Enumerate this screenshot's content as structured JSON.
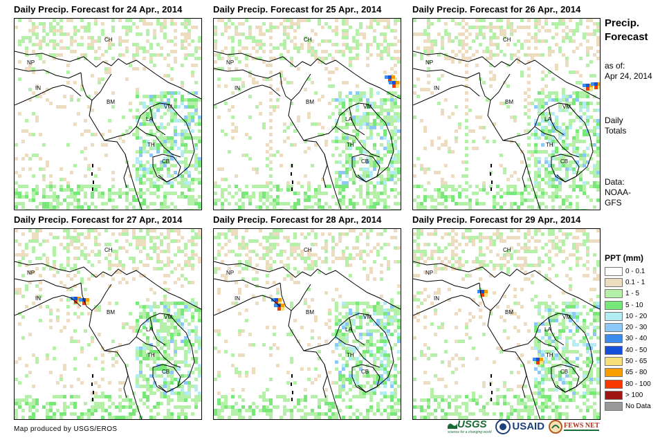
{
  "panels": [
    {
      "title": "Daily Precip. Forecast for 24 Apr., 2014"
    },
    {
      "title": "Daily Precip. Forecast for 25 Apr., 2014"
    },
    {
      "title": "Daily Precip. Forecast for 26 Apr., 2014"
    },
    {
      "title": "Daily Precip. Forecast for 27 Apr., 2014"
    },
    {
      "title": "Daily Precip. Forecast for 28 Apr., 2014"
    },
    {
      "title": "Daily Precip. Forecast for 29 Apr., 2014"
    }
  ],
  "country_labels": [
    "CH",
    "NP",
    "IN",
    "BM",
    "LA",
    "VM",
    "TH",
    "CB"
  ],
  "sidebar": {
    "title_line1": "Precip.",
    "title_line2": "Forecast",
    "asof_line1": "as of:",
    "asof_line2": "Apr 24, 2014",
    "totals_line1": "Daily",
    "totals_line2": "Totals",
    "data_line1": "Data:",
    "data_line2": "NOAA-",
    "data_line3": "GFS"
  },
  "legend": {
    "title": "PPT (mm)",
    "items": [
      {
        "label": "0 - 0.1",
        "color": "#ffffff"
      },
      {
        "label": "0.1 - 1",
        "color": "#ecdcc0"
      },
      {
        "label": "1 - 5",
        "color": "#b4f0a8"
      },
      {
        "label": "5 - 10",
        "color": "#78e878"
      },
      {
        "label": "10 - 20",
        "color": "#b4ecf4"
      },
      {
        "label": "20 - 30",
        "color": "#8cc8f8"
      },
      {
        "label": "30 - 40",
        "color": "#3c8cf0"
      },
      {
        "label": "40 - 50",
        "color": "#1450d8"
      },
      {
        "label": "50 - 65",
        "color": "#f8e078"
      },
      {
        "label": "65 - 80",
        "color": "#f89c00"
      },
      {
        "label": "80 - 100",
        "color": "#f83800"
      },
      {
        "label": "> 100",
        "color": "#a01414"
      },
      {
        "label": "No Data",
        "color": "#999999"
      }
    ]
  },
  "footer": {
    "credit": "Map produced by USGS/EROS",
    "logo_usgs": "USGS",
    "logo_usgs_tagline": "science for a changing world",
    "logo_usaid": "USAID",
    "logo_fews": "FEWS NET"
  }
}
